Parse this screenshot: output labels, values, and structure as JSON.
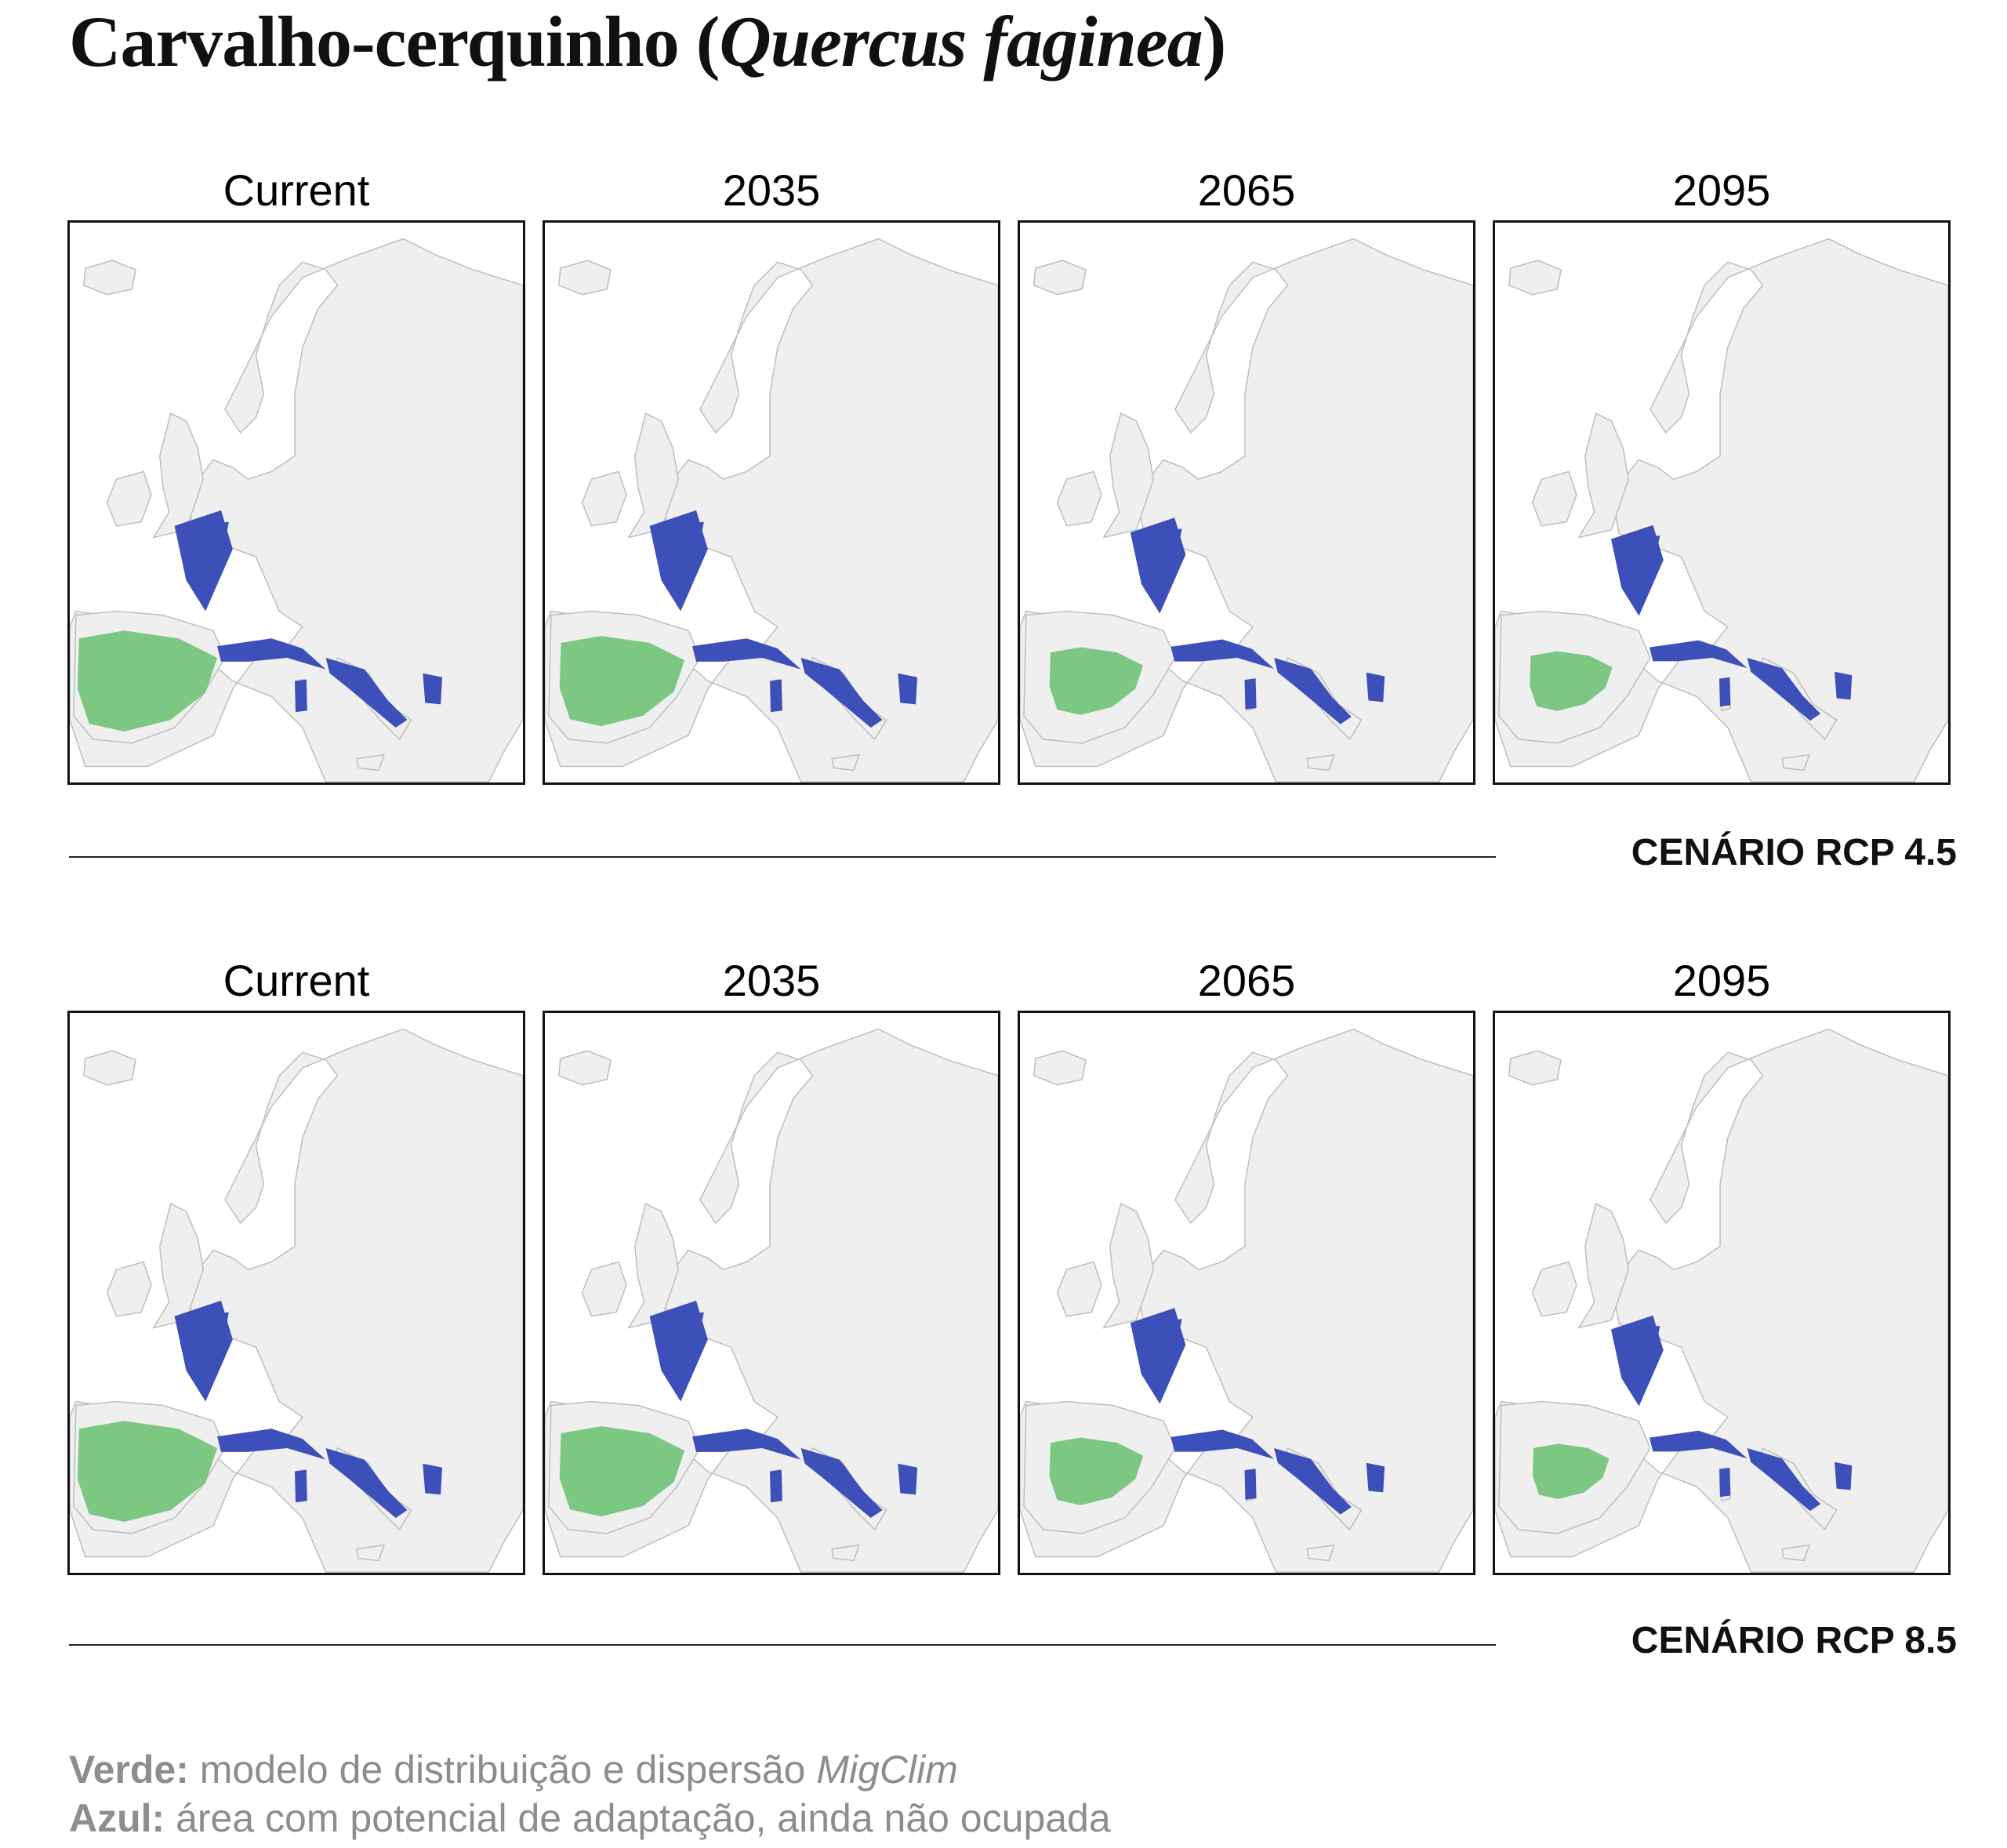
{
  "title": {
    "prefix": "Carvalho-cerquinho (",
    "species_italic": "Quercus faginea",
    "suffix": ")"
  },
  "scenarios": [
    {
      "label": "CENÁRIO RCP 4.5",
      "panels": [
        {
          "period": "Current",
          "green_extent": 1.0,
          "blue_extent": 1.0
        },
        {
          "period": "2035",
          "green_extent": 0.8,
          "blue_extent": 1.0
        },
        {
          "period": "2065",
          "green_extent": 0.45,
          "blue_extent": 0.95
        },
        {
          "period": "2095",
          "green_extent": 0.35,
          "blue_extent": 0.9
        }
      ]
    },
    {
      "label": "CENÁRIO RCP 8.5",
      "panels": [
        {
          "period": "Current",
          "green_extent": 1.0,
          "blue_extent": 1.0
        },
        {
          "period": "2035",
          "green_extent": 0.8,
          "blue_extent": 1.0
        },
        {
          "period": "2065",
          "green_extent": 0.45,
          "blue_extent": 0.95
        },
        {
          "period": "2095",
          "green_extent": 0.3,
          "blue_extent": 0.9
        }
      ]
    }
  ],
  "legend": {
    "green_label": "Verde:",
    "green_text": " modelo de distribuição e dispersão ",
    "green_model": "MigClim",
    "blue_label": "Azul:",
    "blue_text": " área com potencial de adaptação, ainda não ocupada"
  },
  "colors": {
    "green": "#7cc782",
    "blue": "#3d4fb8",
    "land": "#efefef"
  }
}
